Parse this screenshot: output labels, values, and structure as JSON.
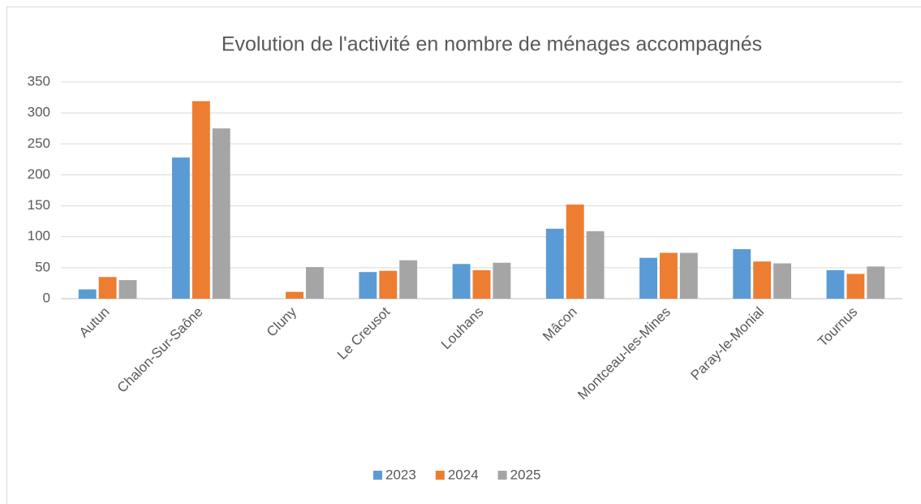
{
  "chart_data": {
    "type": "bar",
    "title": "Evolution de l'activité en nombre de ménages accompagnés",
    "categories": [
      "Autun",
      "Chalon-Sur-Saône",
      "Cluny",
      "Le Creusot",
      "Louhans",
      "Mâcon",
      "Montceau-les-Mines",
      "Paray-le-Monial",
      "Tournus"
    ],
    "series": [
      {
        "name": "2023",
        "color": "#5b9bd5",
        "values": [
          15,
          228,
          0,
          43,
          56,
          113,
          66,
          80,
          46
        ]
      },
      {
        "name": "2024",
        "color": "#ed7d31",
        "values": [
          35,
          319,
          11,
          45,
          46,
          152,
          74,
          60,
          40
        ]
      },
      {
        "name": "2025",
        "color": "#a5a5a5",
        "values": [
          30,
          275,
          51,
          62,
          58,
          109,
          74,
          57,
          52
        ]
      }
    ],
    "ylim": [
      0,
      350
    ],
    "yticks": [
      0,
      50,
      100,
      150,
      200,
      250,
      300,
      350
    ],
    "grid": true,
    "legend": "bottom"
  }
}
